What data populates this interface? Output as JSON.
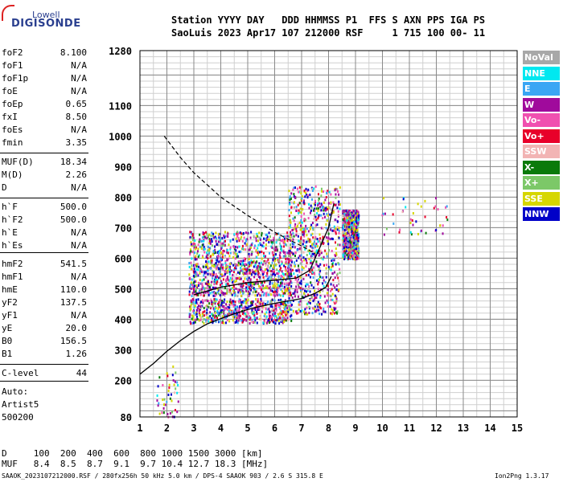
{
  "logo": {
    "line1": "Lowell",
    "line2": "DIGISONDE"
  },
  "header": {
    "row1": "Station YYYY DAY   DDD HHMMSS P1  FFS S AXN PPS IGA PS",
    "row2": "SaoLuis 2023 Apr17 107 212000 RSF     1 715 100 00- 11"
  },
  "params_group1": [
    {
      "name": "foF2",
      "value": "8.100"
    },
    {
      "name": "foF1",
      "value": "N/A"
    },
    {
      "name": "foF1p",
      "value": "N/A"
    },
    {
      "name": "foE",
      "value": "N/A"
    },
    {
      "name": "foEp",
      "value": "0.65"
    },
    {
      "name": "fxI",
      "value": "8.50"
    },
    {
      "name": "foEs",
      "value": "N/A"
    },
    {
      "name": "fmin",
      "value": "3.35"
    }
  ],
  "params_group2": [
    {
      "name": "MUF(D)",
      "value": "18.34"
    },
    {
      "name": "M(D)",
      "value": "2.26"
    },
    {
      "name": "D",
      "value": "N/A"
    }
  ],
  "params_group3": [
    {
      "name": "h`F",
      "value": "500.0"
    },
    {
      "name": "h`F2",
      "value": "500.0"
    },
    {
      "name": "h`E",
      "value": "N/A"
    },
    {
      "name": "h`Es",
      "value": "N/A"
    }
  ],
  "params_group4": [
    {
      "name": "hmF2",
      "value": "541.5"
    },
    {
      "name": "hmF1",
      "value": "N/A"
    },
    {
      "name": "hmE",
      "value": "110.0"
    },
    {
      "name": "yF2",
      "value": "137.5"
    },
    {
      "name": "yF1",
      "value": "N/A"
    },
    {
      "name": "yE",
      "value": "20.0"
    },
    {
      "name": "B0",
      "value": "156.5"
    },
    {
      "name": "B1",
      "value": "1.26"
    }
  ],
  "params_group5": [
    {
      "name": "C-level",
      "value": "44"
    }
  ],
  "auto": {
    "line1": "Auto:",
    "line2": "Artist5",
    "line3": "500200"
  },
  "legend": [
    {
      "label": "NoVal",
      "color": "#a8a8a8"
    },
    {
      "label": "NNE",
      "color": "#00e8f0"
    },
    {
      "label": "E",
      "color": "#3aa6f4"
    },
    {
      "label": "W",
      "color": "#a00a9c"
    },
    {
      "label": "Vo-",
      "color": "#f050b0"
    },
    {
      "label": "Vo+",
      "color": "#e8002a"
    },
    {
      "label": "SSW",
      "color": "#f2b4b4"
    },
    {
      "label": "X-",
      "color": "#0a7a0a"
    },
    {
      "label": "X+",
      "color": "#7cc868"
    },
    {
      "label": "SSE",
      "color": "#d6d600"
    },
    {
      "label": "NNW",
      "color": "#0000c8"
    }
  ],
  "footer": {
    "d_row": "D     100  200  400  600  800 1000 1500 3000 [km]",
    "muf_row": "MUF   8.4  8.5  8.7  9.1  9.7 10.4 12.7 18.3 [MHz]",
    "status_left": "SAAOK_2023107212000.RSF / 280fx256h 50 kHz 5.0 km / DPS-4 SAAOK 903 / 2.6 S 315.8 E",
    "status_right": "Ion2Png 1.3.17"
  },
  "chart_data": {
    "type": "scatter",
    "xlabel": "",
    "ylabel": "",
    "xlim": [
      1,
      15
    ],
    "ylim": [
      80,
      1280
    ],
    "x_ticks": [
      "1",
      "2",
      "3",
      "4",
      "5",
      "6",
      "7",
      "8",
      "9",
      "10",
      "11",
      "12",
      "13",
      "14",
      "15"
    ],
    "y_ticks": [
      "80",
      "200",
      "300",
      "400",
      "500",
      "600",
      "700",
      "800",
      "900",
      "1000",
      "1100",
      "1280"
    ],
    "grid": true,
    "series": [
      {
        "name": "X-/X+ trace (F2 profile)",
        "values": [
          [
            1.0,
            220
          ],
          [
            1.5,
            255
          ],
          [
            2.0,
            295
          ],
          [
            2.5,
            330
          ],
          [
            3.0,
            360
          ],
          [
            3.5,
            385
          ],
          [
            4.0,
            402
          ],
          [
            4.5,
            418
          ],
          [
            5.0,
            432
          ],
          [
            5.5,
            443
          ],
          [
            6.0,
            452
          ],
          [
            6.5,
            460
          ],
          [
            7.0,
            468
          ],
          [
            7.5,
            485
          ],
          [
            7.9,
            505
          ],
          [
            8.1,
            540
          ]
        ]
      },
      {
        "name": "profile upper branch",
        "values": [
          [
            3.0,
            480
          ],
          [
            4.0,
            505
          ],
          [
            5.0,
            520
          ],
          [
            6.0,
            528
          ],
          [
            6.8,
            535
          ],
          [
            7.3,
            560
          ],
          [
            7.7,
            640
          ],
          [
            8.0,
            700
          ],
          [
            8.2,
            780
          ]
        ]
      },
      {
        "name": "extrapolated topside (dashed)",
        "values": [
          [
            1.9,
            1000
          ],
          [
            2.5,
            930
          ],
          [
            3.0,
            880
          ],
          [
            3.5,
            840
          ],
          [
            4.0,
            800
          ],
          [
            4.5,
            770
          ],
          [
            5.0,
            740
          ],
          [
            5.5,
            712
          ],
          [
            6.0,
            685
          ],
          [
            6.5,
            662
          ],
          [
            7.0,
            640
          ],
          [
            7.5,
            615
          ]
        ]
      }
    ],
    "echo_clusters": [
      {
        "x_range": [
          2.8,
          6.6
        ],
        "y_range": [
          380,
          700
        ],
        "density": "high"
      },
      {
        "x_range": [
          6.5,
          8.4
        ],
        "y_range": [
          420,
          840
        ],
        "density": "medium"
      },
      {
        "x_range": [
          8.5,
          9.1
        ],
        "y_range": [
          600,
          760
        ],
        "density": "medium"
      },
      {
        "x_range": [
          9.9,
          12.4
        ],
        "y_range": [
          680,
          810
        ],
        "density": "low"
      },
      {
        "x_range": [
          1.6,
          2.4
        ],
        "y_range": [
          80,
          250
        ],
        "density": "low"
      }
    ]
  }
}
